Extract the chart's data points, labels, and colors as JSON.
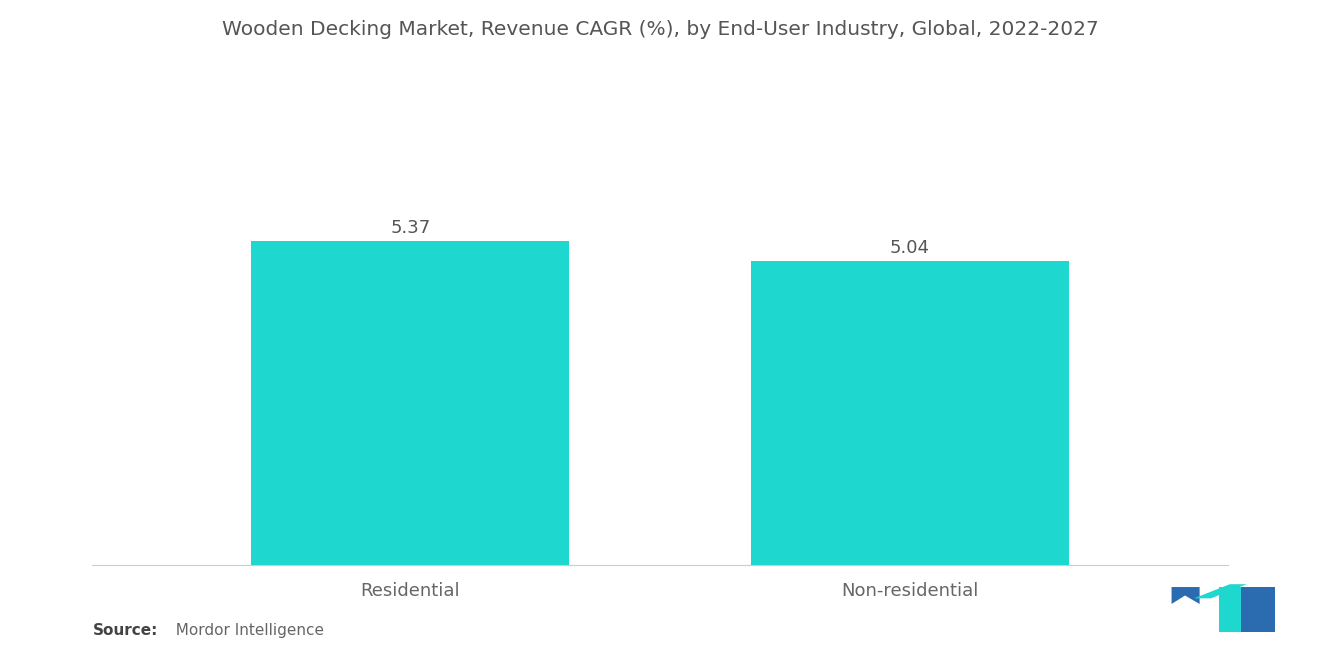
{
  "title": "Wooden Decking Market, Revenue CAGR (%), by End-User Industry, Global, 2022-2027",
  "categories": [
    "Residential",
    "Non-residential"
  ],
  "values": [
    5.37,
    5.04
  ],
  "bar_color": "#1ED8D0",
  "bar_width": 0.28,
  "value_labels": [
    "5.37",
    "5.04"
  ],
  "ylim": [
    0,
    7.5
  ],
  "title_fontsize": 14.5,
  "label_fontsize": 13,
  "value_fontsize": 13,
  "background_color": "#ffffff",
  "source_bold": "Source:",
  "source_normal": "  Mordor Intelligence",
  "source_fontsize": 11,
  "x_positions": [
    0.28,
    0.72
  ],
  "xlim": [
    0,
    1
  ]
}
